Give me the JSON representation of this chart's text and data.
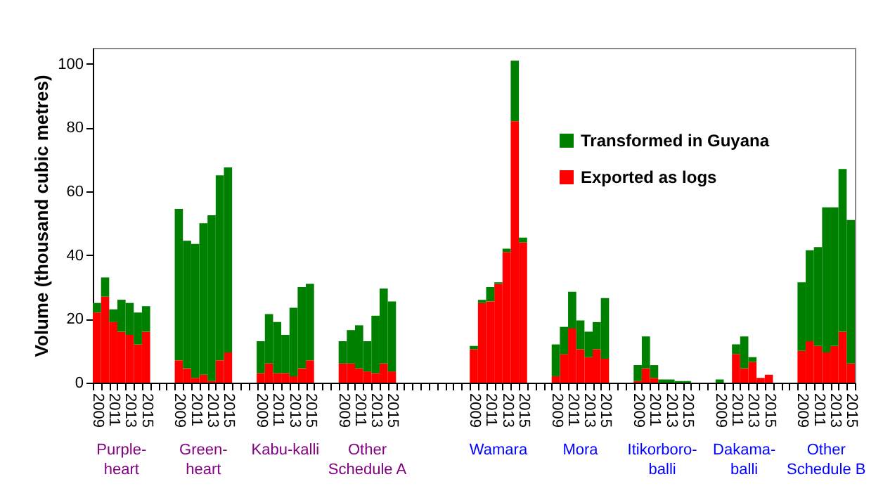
{
  "chart_data": {
    "type": "bar",
    "stacked": true,
    "ylabel": "Volume (thousand cubic metres)",
    "ylim": [
      0,
      105
    ],
    "yticks": [
      0,
      20,
      40,
      60,
      80,
      100
    ],
    "legend": "top right",
    "categories": [
      "2009",
      null,
      "2011",
      null,
      "2013",
      null,
      "2015",
      null,
      null,
      null,
      "2009",
      null,
      "2011",
      null,
      "2013",
      null,
      "2015",
      null,
      null,
      null,
      "2009",
      null,
      "2011",
      null,
      "2013",
      null,
      "2015",
      null,
      null,
      null,
      "2009",
      null,
      "2011",
      null,
      "2013",
      null,
      "2015",
      null,
      null,
      null,
      null,
      null,
      null,
      null,
      null,
      null,
      "2009",
      null,
      "2011",
      null,
      "2013",
      null,
      "2015",
      null,
      null,
      null,
      "2009",
      null,
      "2011",
      null,
      "2013",
      null,
      "2015",
      null,
      null,
      null,
      "2009",
      null,
      "2011",
      null,
      "2013",
      null,
      "2015",
      null,
      null,
      null,
      "2009",
      null,
      "2011",
      null,
      "2013",
      null,
      "2015",
      null,
      null,
      null,
      "2009",
      null,
      "2011",
      null,
      "2013",
      null,
      "2015"
    ],
    "series": [
      {
        "name": "Exported as logs",
        "color": "#ff0000",
        "values": [
          22,
          27,
          19,
          16,
          15,
          12,
          16,
          null,
          null,
          null,
          7,
          4.5,
          1.5,
          2.5,
          0.5,
          7,
          9.5,
          null,
          null,
          null,
          3,
          6,
          3,
          3,
          2,
          4.5,
          7,
          null,
          null,
          null,
          6,
          6,
          4.5,
          3.5,
          3,
          6,
          3.5,
          null,
          null,
          null,
          null,
          null,
          null,
          null,
          null,
          null,
          10.5,
          25,
          25.5,
          31,
          41,
          82,
          44,
          null,
          null,
          null,
          2,
          9,
          17,
          10.5,
          8,
          10.5,
          7.5,
          null,
          null,
          null,
          0.5,
          4.5,
          1.5,
          0,
          0,
          0,
          0,
          null,
          null,
          null,
          0,
          0,
          9,
          4.5,
          6.5,
          1.5,
          2.5,
          null,
          null,
          null,
          10,
          13,
          11.5,
          9.5,
          11.5,
          16,
          6
        ]
      },
      {
        "name": "Transformed in Guyana",
        "color": "#008000",
        "values": [
          3,
          6,
          4,
          10,
          10,
          10,
          8,
          null,
          null,
          null,
          47.5,
          40,
          42,
          47.5,
          52,
          58,
          58,
          null,
          null,
          null,
          10,
          15.5,
          16,
          12,
          21.5,
          25.5,
          24,
          null,
          null,
          null,
          7,
          10.5,
          13.5,
          9.5,
          18,
          23.5,
          22,
          null,
          null,
          null,
          null,
          null,
          null,
          null,
          null,
          null,
          1,
          1,
          4.5,
          0.5,
          1,
          19,
          1.5,
          null,
          null,
          null,
          10,
          8.5,
          11.5,
          9,
          8,
          8.5,
          19,
          null,
          null,
          null,
          5,
          10,
          4,
          1,
          1,
          0.5,
          0.5,
          null,
          null,
          null,
          1,
          0,
          3,
          10,
          1.5,
          0,
          0,
          null,
          null,
          null,
          21.5,
          28.5,
          31,
          45.5,
          43.5,
          51,
          45
        ]
      }
    ],
    "annotations": [
      "Purple-\nheart",
      "Green-\nheart",
      "Kabu-kalli",
      "Other\nSchedule A",
      "Wamara",
      "Mora",
      "Itikorboro-\nballi",
      "Dakama-\nballi",
      "Other\nSchedule B"
    ]
  }
}
